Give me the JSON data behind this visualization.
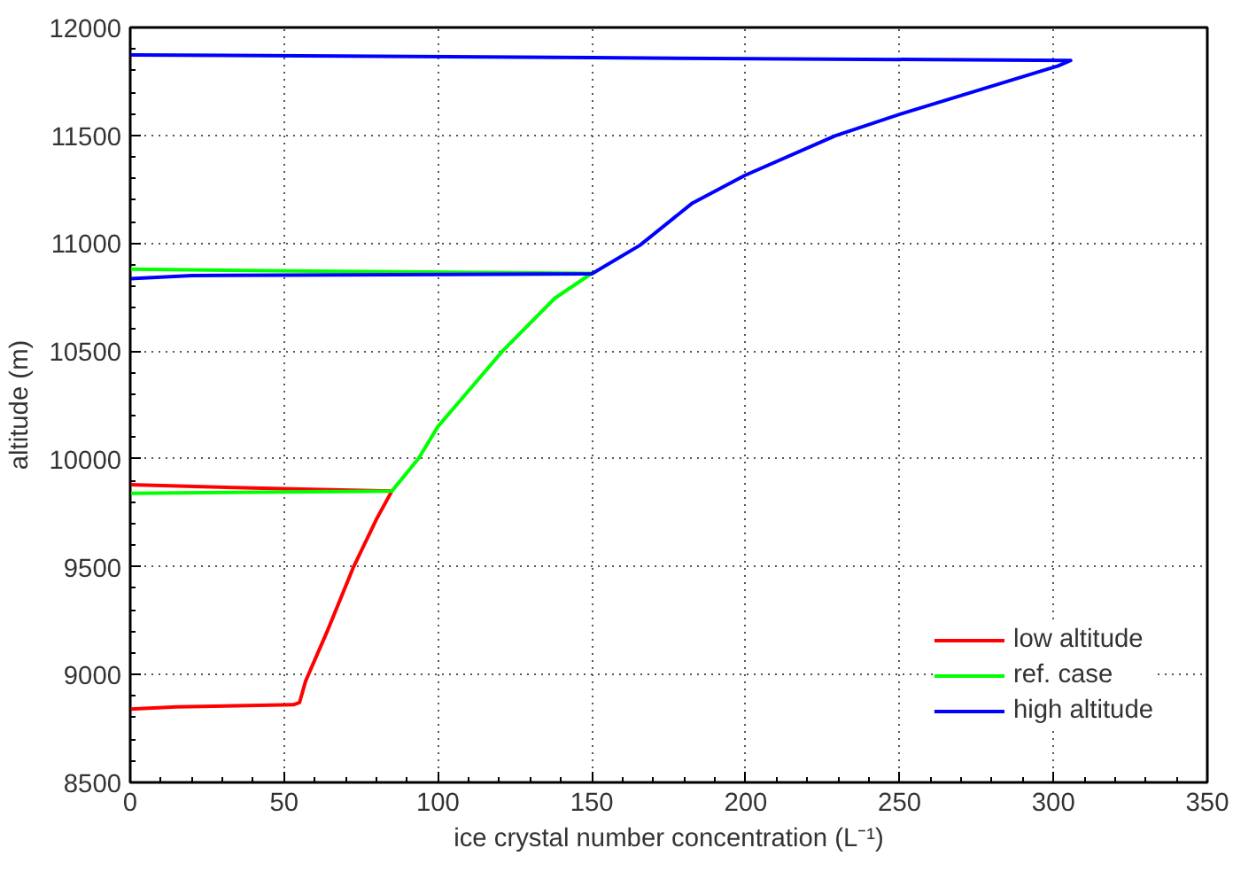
{
  "chart_data": {
    "type": "line",
    "xlabel": "ice crystal number concentration (L⁻¹)",
    "ylabel": "altitude (m)",
    "xlim": [
      0,
      350
    ],
    "ylim": [
      8500,
      12000
    ],
    "xticks": [
      0,
      50,
      100,
      150,
      200,
      250,
      300,
      350
    ],
    "yticks": [
      8500,
      9000,
      9500,
      10000,
      10500,
      11000,
      11500,
      12000
    ],
    "grid": true,
    "legend": "bottom right",
    "line_style": "solid",
    "series": [
      {
        "name": "low altitude",
        "color": "#ff0000",
        "x": [
          0,
          15,
          53,
          55,
          57,
          64,
          72.6,
          80,
          85,
          40,
          0
        ],
        "values": [
          8840,
          8850,
          8860,
          8870,
          8970,
          9200,
          9500,
          9720,
          9850,
          9865,
          9880
        ]
      },
      {
        "name": "ref. case",
        "color": "#00ff00",
        "x": [
          0,
          40,
          85,
          93.6,
          100,
          121,
          138,
          150,
          60,
          0
        ],
        "values": [
          9840,
          9845,
          9850,
          10000,
          10150,
          10500,
          10745,
          10860,
          10870,
          10880
        ]
      },
      {
        "name": "high altitude",
        "color": "#0000ff",
        "x": [
          0,
          20,
          150,
          165.6,
          182.7,
          199.7,
          229,
          250.6,
          301.5,
          305.6,
          150,
          0
        ],
        "values": [
          10835,
          10850,
          10858,
          10990,
          11186,
          11314,
          11497,
          11600,
          11822,
          11847,
          11860,
          11873
        ]
      }
    ]
  }
}
